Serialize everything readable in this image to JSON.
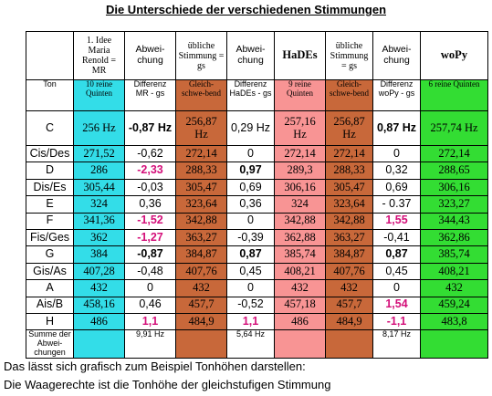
{
  "title": "Die Unterschiede der verschiedenen Stimmungen",
  "table": {
    "header": [
      "1. Idee Maria Renold = MR",
      "Abwei-chung",
      "übliche Stimmung = gs",
      "Abwei-chung",
      "HaDEs",
      "übliche Stimmung = gs",
      "Abwei-chung",
      "woPy"
    ],
    "subheader": [
      "Ton",
      "10 reine Quinten",
      "Differenz MR - gs",
      "Gleich-schwe-bend",
      "Differenz HaDEs - gs",
      "9 reine Quinten",
      "Gleich-schwe-bend",
      "Differenz woPy - gs",
      "6 reine Quinten"
    ],
    "rows": [
      [
        "C",
        "256 Hz",
        "-0,87 Hz",
        "256,87 Hz",
        "0,29 Hz",
        "257,16 Hz",
        "256,87 Hz",
        "0,87 Hz",
        "257,74 Hz"
      ],
      [
        "Cis/Des",
        "271,52",
        "-0,62",
        "272,14",
        "0",
        "272,14",
        "272,14",
        "0",
        "272,14"
      ],
      [
        "D",
        "286",
        "-2,33",
        "288,33",
        "0,97",
        "289,3",
        "288,33",
        "0,32",
        "288,65"
      ],
      [
        "Dis/Es",
        "305,44",
        "-0,03",
        "305,47",
        "0,69",
        "306,16",
        "305,47",
        "0,69",
        "306,16"
      ],
      [
        "E",
        "324",
        "0,36",
        "323,64",
        "0,36",
        "324",
        "323,64",
        "- 0.37",
        "323,27"
      ],
      [
        "F",
        "341,36",
        "-1,52",
        "342,88",
        "0",
        "342,88",
        "342,88",
        "1,55",
        "344,43"
      ],
      [
        "Fis/Ges",
        "362",
        "-1,27",
        "363,27",
        "-0,39",
        "362,88",
        "363,27",
        "-0,41",
        "362,86"
      ],
      [
        "G",
        "384",
        "-0,87",
        "384,87",
        "0,87",
        "385,74",
        "384,87",
        "0,87",
        "385,74"
      ],
      [
        "Gis/As",
        "407,28",
        "-0,48",
        "407,76",
        "0,45",
        "408,21",
        "407,76",
        "0,45",
        "408,21"
      ],
      [
        "A",
        "432",
        "0",
        "432",
        "0",
        "432",
        "432",
        "0",
        "432"
      ],
      [
        "Ais/B",
        "458,16",
        "0,46",
        "457,7",
        "-0,52",
        "457,18",
        "457,7",
        "1,54",
        "459,24"
      ],
      [
        "H",
        "486",
        "1,1",
        "484,9",
        "1,1",
        "486",
        "484,9",
        "-1,1",
        "483,8"
      ]
    ],
    "sum_row": {
      "label": "Summe der Abwei-chungen",
      "cells": [
        "9,91 Hz",
        "5,64 Hz",
        "8,17 Hz"
      ]
    }
  },
  "footer": [
    "Das lässt sich grafisch zum Beispiel Tonhöhen darstellen:",
    "Die Waagerechte ist die Tonhöhe der gleichstufigen Stimmung"
  ]
}
